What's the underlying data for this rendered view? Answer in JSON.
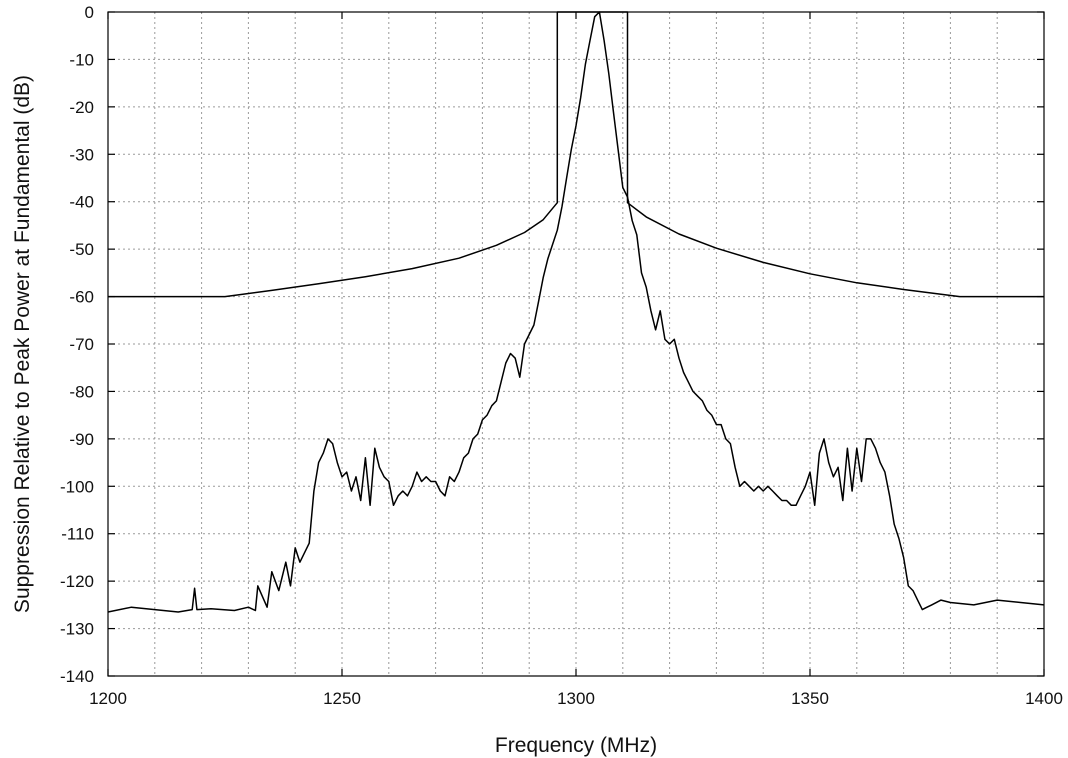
{
  "chart_data": {
    "type": "line",
    "title": "",
    "xlabel": "Frequency (MHz)",
    "ylabel": "Suppression Relative to Peak Power at Fundamental (dB)",
    "xlim": [
      1200,
      1400
    ],
    "ylim": [
      -140,
      0
    ],
    "xticks": [
      1200,
      1250,
      1300,
      1350,
      1400
    ],
    "yticks": [
      0,
      -10,
      -20,
      -30,
      -40,
      -50,
      -60,
      -70,
      -80,
      -90,
      -100,
      -110,
      -120,
      -130,
      -140
    ],
    "grid": true,
    "legend": "none",
    "series": [
      {
        "role": "emission mask",
        "x": [
          1200,
          1225,
          1235,
          1245,
          1255,
          1265,
          1275,
          1283,
          1289,
          1293,
          1296,
          1296,
          1311,
          1311,
          1315,
          1322,
          1330,
          1340,
          1350,
          1360,
          1370,
          1382,
          1400
        ],
        "y": [
          -60,
          -60,
          -58.7,
          -57.3,
          -55.8,
          -54.1,
          -51.9,
          -49.2,
          -46.5,
          -43.8,
          -40.2,
          0,
          0,
          -40.2,
          -43.2,
          -46.8,
          -49.8,
          -52.8,
          -55.2,
          -57.1,
          -58.5,
          -60,
          -60
        ]
      },
      {
        "role": "measured spectrum",
        "x": [
          1200,
          1205,
          1210,
          1215,
          1218,
          1218.5,
          1219,
          1222,
          1227,
          1230,
          1231.5,
          1232,
          1234,
          1235,
          1236.5,
          1238,
          1239,
          1240,
          1241,
          1243,
          1244,
          1245,
          1246,
          1247,
          1248,
          1249,
          1250,
          1251,
          1252,
          1253,
          1254,
          1255,
          1256,
          1257,
          1258,
          1259,
          1260,
          1261,
          1262,
          1263,
          1264,
          1265,
          1266,
          1267,
          1268,
          1269,
          1270,
          1271,
          1272,
          1273,
          1274,
          1275,
          1276,
          1277,
          1278,
          1279,
          1280,
          1281,
          1282,
          1283,
          1284,
          1285,
          1286,
          1287,
          1288,
          1289,
          1290,
          1291,
          1292,
          1293,
          1294,
          1295,
          1296,
          1297,
          1298,
          1299,
          1300,
          1301,
          1302,
          1303,
          1304,
          1305,
          1306,
          1307,
          1308,
          1309,
          1310,
          1311,
          1312,
          1313,
          1314,
          1315,
          1316,
          1317,
          1318,
          1319,
          1320,
          1321,
          1322,
          1323,
          1324,
          1325,
          1326,
          1327,
          1328,
          1329,
          1330,
          1331,
          1332,
          1333,
          1334,
          1335,
          1336,
          1337,
          1338,
          1339,
          1340,
          1341,
          1342,
          1343,
          1344,
          1345,
          1346,
          1347,
          1348,
          1349,
          1350,
          1351,
          1352,
          1353,
          1354,
          1355,
          1356,
          1357,
          1358,
          1359,
          1360,
          1361,
          1362,
          1363,
          1364,
          1365,
          1366,
          1367,
          1368,
          1369,
          1370,
          1371,
          1372,
          1373,
          1374,
          1375,
          1376,
          1378,
          1380,
          1385,
          1390,
          1395,
          1400
        ],
        "y": [
          -126.5,
          -125.5,
          -126,
          -126.5,
          -126,
          -121.5,
          -126,
          -125.8,
          -126.2,
          -125.5,
          -126.2,
          -121,
          -125.5,
          -118,
          -122,
          -116,
          -121,
          -113,
          -116,
          -112,
          -101,
          -95,
          -93,
          -90,
          -91,
          -95,
          -98,
          -97,
          -101,
          -98,
          -103,
          -94,
          -104,
          -92,
          -96,
          -98,
          -99,
          -104,
          -102,
          -101,
          -102,
          -100,
          -97,
          -99,
          -98,
          -99,
          -99,
          -101,
          -102,
          -98,
          -99,
          -97,
          -94,
          -93,
          -90,
          -89,
          -86,
          -85,
          -83,
          -82,
          -78,
          -74,
          -72,
          -73,
          -77,
          -70,
          -68,
          -66,
          -61,
          -56,
          -52,
          -49,
          -46,
          -41,
          -35,
          -29,
          -24,
          -18,
          -11,
          -6,
          -1,
          0,
          -6,
          -13,
          -21,
          -29,
          -37,
          -39,
          -44,
          -47,
          -55,
          -58,
          -63,
          -67,
          -63,
          -69,
          -70,
          -69,
          -73,
          -76,
          -78,
          -80,
          -81,
          -82,
          -84,
          -85,
          -87,
          -87,
          -90,
          -91,
          -96,
          -100,
          -99,
          -100,
          -101,
          -100,
          -101,
          -100,
          -101,
          -102,
          -103,
          -103,
          -104,
          -104,
          -102,
          -100,
          -97,
          -104,
          -93,
          -90,
          -95,
          -98,
          -96,
          -103,
          -92,
          -101,
          -92,
          -99,
          -90,
          -90,
          -92,
          -95,
          -97,
          -102,
          -108,
          -111,
          -115,
          -121,
          -122,
          -124,
          -126,
          -125.5,
          -125,
          -124,
          -124.5,
          -125,
          -124,
          -124.5,
          -125
        ]
      }
    ]
  }
}
